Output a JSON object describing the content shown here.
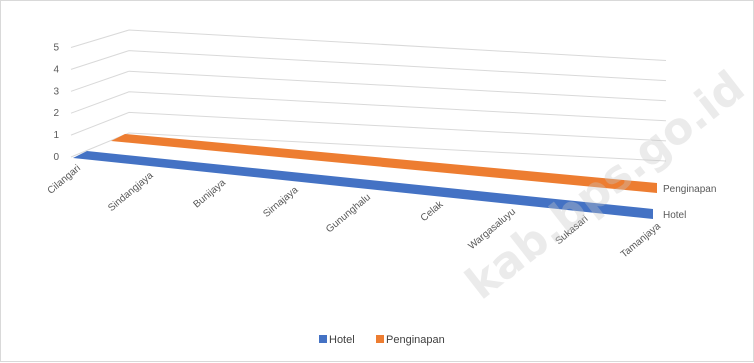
{
  "chart_data": {
    "type": "line",
    "subtype": "3d-line",
    "title": "",
    "xlabel": "",
    "ylabel": "",
    "categories": [
      "Cilangari",
      "Sindangjaya",
      "Bunijaya",
      "Sirnajaya",
      "Gununghalu",
      "Celak",
      "Wargasaluyu",
      "Sukasari",
      "Tamanjaya"
    ],
    "series": [
      {
        "name": "Hotel",
        "values": [
          0,
          0,
          0,
          0,
          0,
          0,
          0,
          0,
          0
        ],
        "color": "#4472c4"
      },
      {
        "name": "Penginapan",
        "values": [
          0,
          0,
          0,
          0,
          0,
          0,
          0,
          0,
          0
        ],
        "color": "#ed7d31"
      }
    ],
    "y_ticks": [
      "0",
      "1",
      "2",
      "3",
      "4",
      "5"
    ],
    "ylim": [
      0,
      5
    ],
    "grid": true,
    "legend": "bottom"
  },
  "watermark": "kab.bps.go.id"
}
